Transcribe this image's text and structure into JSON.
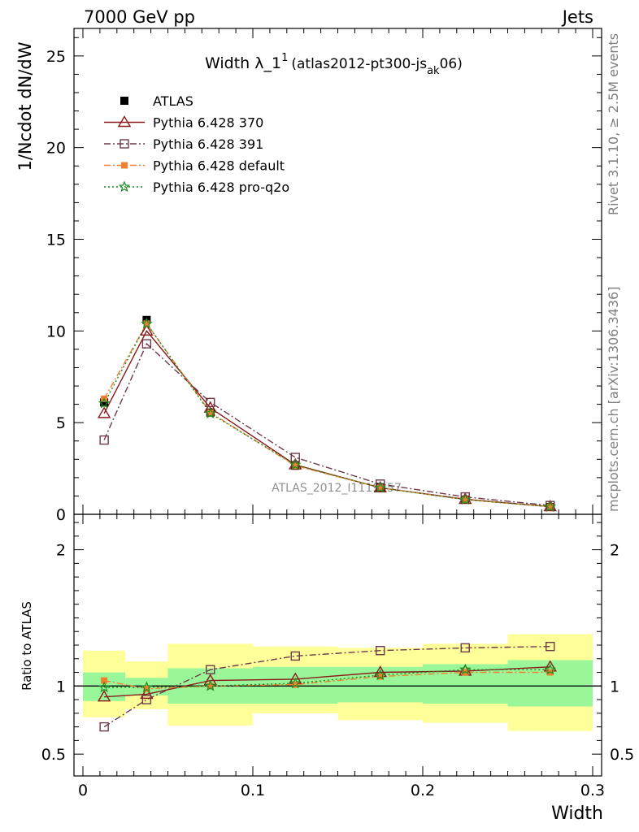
{
  "header": {
    "left": "7000 GeV pp",
    "right": "Jets"
  },
  "title": {
    "main": "Width λ_1",
    "sup": "1",
    "sub_open": "(atlas2012-pt300-js",
    "sub_sub": "ak",
    "sub_close": "06)"
  },
  "side_text": {
    "rivet": "Rivet 3.1.10, ≥ 2.5M events",
    "mcplots": "mcplots.cern.ch [arXiv:1306.3436]"
  },
  "watermark": "ATLAS_2012_I1119557",
  "chart_data": [
    {
      "type": "scatter",
      "panel": "main",
      "ylabel": "1/Ncdot dN/dW",
      "xlim": [
        0,
        0.3
      ],
      "ylim": [
        0,
        26.5
      ],
      "yticks": [
        "0",
        "5",
        "10",
        "15",
        "20",
        "25"
      ],
      "x": [
        0.0125,
        0.0375,
        0.075,
        0.125,
        0.175,
        0.225,
        0.275
      ],
      "series": [
        {
          "name": "ATLAS",
          "color": "#000000",
          "style": "data",
          "values": [
            6.1,
            10.6,
            5.55,
            2.65,
            1.45,
            0.8,
            0.4
          ]
        },
        {
          "name": "Pythia 6.428 370",
          "color": "#8b1a1a",
          "style": "solid",
          "marker": "triangle",
          "values": [
            5.5,
            10.0,
            5.8,
            2.7,
            1.45,
            0.82,
            0.42
          ]
        },
        {
          "name": "Pythia 6.428 391",
          "color": "#6e3a4a",
          "style": "dashdot",
          "marker": "square-open",
          "values": [
            4.05,
            9.3,
            6.1,
            3.1,
            1.65,
            0.95,
            0.48
          ]
        },
        {
          "name": "Pythia 6.428 default",
          "color": "#f08030",
          "style": "dashdot",
          "marker": "square-filled",
          "values": [
            6.3,
            10.4,
            5.55,
            2.65,
            1.45,
            0.8,
            0.41
          ]
        },
        {
          "name": "Pythia 6.428 pro-q2o",
          "color": "#1e8c1e",
          "style": "dotted",
          "marker": "star",
          "values": [
            6.05,
            10.4,
            5.5,
            2.7,
            1.45,
            0.8,
            0.41
          ]
        }
      ]
    },
    {
      "type": "scatter",
      "panel": "ratio",
      "xlabel": "Width",
      "ylabel": "Ratio to ATLAS",
      "xlim": [
        0,
        0.3
      ],
      "ylim": [
        0.34,
        2.26
      ],
      "xticks": [
        "0",
        "0.1",
        "0.2",
        "0.3"
      ],
      "yticks": [
        "0.5",
        "1",
        "2"
      ],
      "bin_edges": [
        0,
        0.025,
        0.05,
        0.1,
        0.15,
        0.2,
        0.25,
        0.3
      ],
      "band_inner": [
        [
          0.89,
          1.1
        ],
        [
          0.93,
          1.06
        ],
        [
          0.87,
          1.13
        ],
        [
          0.87,
          1.14
        ],
        [
          0.88,
          1.14
        ],
        [
          0.87,
          1.16
        ],
        [
          0.85,
          1.19
        ]
      ],
      "band_outer": [
        [
          0.77,
          1.26
        ],
        [
          0.83,
          1.18
        ],
        [
          0.71,
          1.31
        ],
        [
          0.8,
          1.29
        ],
        [
          0.75,
          1.28
        ],
        [
          0.73,
          1.31
        ],
        [
          0.67,
          1.38
        ]
      ],
      "x": [
        0.0125,
        0.0375,
        0.075,
        0.125,
        0.175,
        0.225,
        0.275
      ],
      "series": [
        {
          "name": "Pythia 6.428 370",
          "color": "#8b1a1a",
          "style": "solid",
          "marker": "triangle",
          "values": [
            0.92,
            0.94,
            1.04,
            1.05,
            1.1,
            1.11,
            1.14
          ]
        },
        {
          "name": "Pythia 6.428 391",
          "color": "#6e3a4a",
          "style": "dashdot",
          "marker": "square-open",
          "values": [
            0.7,
            0.9,
            1.12,
            1.22,
            1.26,
            1.28,
            1.29
          ]
        },
        {
          "name": "Pythia 6.428 default",
          "color": "#f08030",
          "style": "dashdot",
          "marker": "square-filled",
          "values": [
            1.04,
            0.98,
            1.0,
            1.01,
            1.07,
            1.1,
            1.1
          ]
        },
        {
          "name": "Pythia 6.428 pro-q2o",
          "color": "#1e8c1e",
          "style": "dotted",
          "marker": "star",
          "values": [
            0.99,
            0.99,
            1.0,
            1.02,
            1.08,
            1.12,
            1.12
          ]
        }
      ]
    }
  ]
}
